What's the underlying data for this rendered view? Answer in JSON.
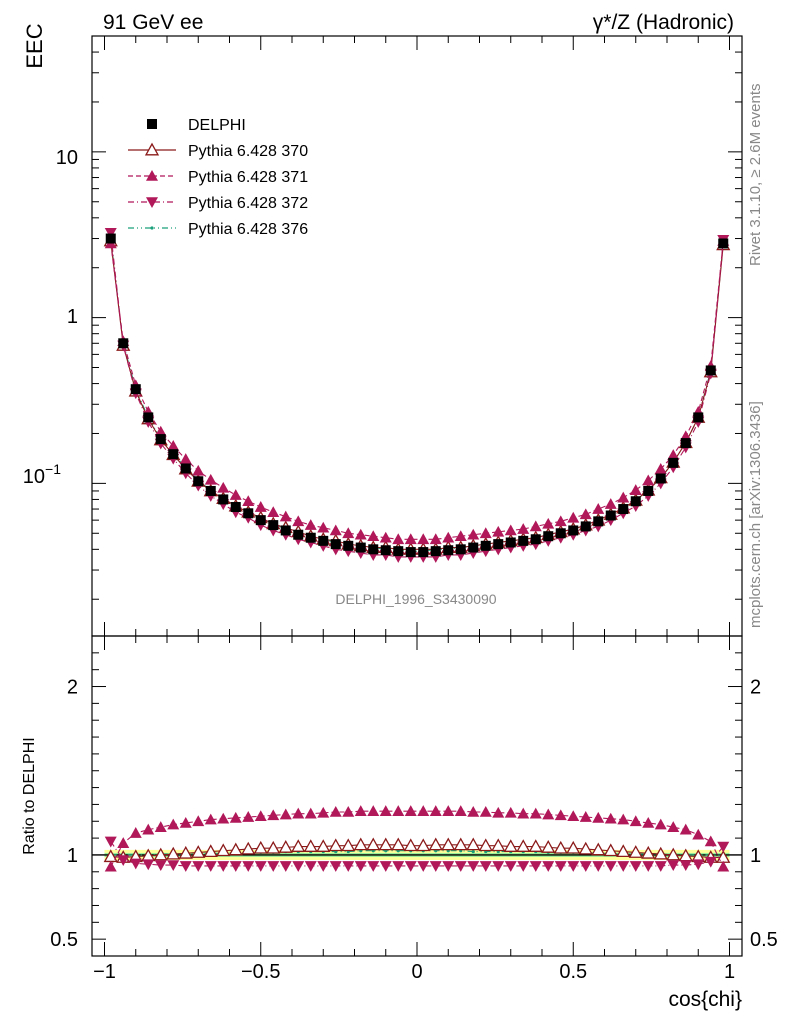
{
  "header": {
    "left_title": "91 GeV ee",
    "right_title": "γ*/Z (Hadronic)"
  },
  "side_text": {
    "rivet": "Rivet 3.1.10, ≥ 2.6M events",
    "mcplots": "mcplots.cern.ch [arXiv:1306.3436]"
  },
  "analysis_label": "DELPHI_1996_S3430090",
  "colors": {
    "data": "#000000",
    "p370": "#8b1a1a",
    "p371": "#b0185a",
    "p372": "#b0185a",
    "p376": "#1aa07a",
    "band_outer": "#ffff99",
    "band_inner": "#99ee99"
  },
  "chart_data": [
    {
      "type": "scatter",
      "ylabel": "EEC",
      "yscale": "log",
      "ylim": [
        0.012,
        50
      ],
      "xlim": [
        -1.04,
        1.04
      ],
      "ytick_labels": {
        "t10": "10",
        "t1": "1",
        "t01_base": "10",
        "t01_exp": "−1"
      },
      "legend": {
        "placement": "top-left",
        "entries": [
          "DELPHI",
          "Pythia 6.428 370",
          "Pythia 6.428 371",
          "Pythia 6.428 372",
          "Pythia 6.428 376"
        ]
      },
      "x": [
        -0.98,
        -0.94,
        -0.9,
        -0.86,
        -0.82,
        -0.78,
        -0.74,
        -0.7,
        -0.66,
        -0.62,
        -0.58,
        -0.54,
        -0.5,
        -0.46,
        -0.42,
        -0.38,
        -0.34,
        -0.3,
        -0.26,
        -0.22,
        -0.18,
        -0.14,
        -0.1,
        -0.06,
        -0.02,
        0.02,
        0.06,
        0.1,
        0.14,
        0.18,
        0.22,
        0.26,
        0.3,
        0.34,
        0.38,
        0.42,
        0.46,
        0.5,
        0.54,
        0.58,
        0.62,
        0.66,
        0.7,
        0.74,
        0.78,
        0.82,
        0.86,
        0.9,
        0.94,
        0.98
      ],
      "series": [
        {
          "name": "DELPHI",
          "values": [
            3.0,
            0.7,
            0.37,
            0.25,
            0.185,
            0.15,
            0.123,
            0.103,
            0.09,
            0.08,
            0.072,
            0.066,
            0.06,
            0.056,
            0.052,
            0.049,
            0.047,
            0.045,
            0.043,
            0.042,
            0.041,
            0.04,
            0.0395,
            0.039,
            0.0385,
            0.0385,
            0.039,
            0.0395,
            0.04,
            0.041,
            0.042,
            0.043,
            0.044,
            0.045,
            0.046,
            0.048,
            0.05,
            0.052,
            0.055,
            0.059,
            0.064,
            0.07,
            0.078,
            0.09,
            0.107,
            0.133,
            0.175,
            0.25,
            0.48,
            2.8
          ]
        },
        {
          "name": "Pythia 6.428 370",
          "values": [
            2.9,
            0.68,
            0.36,
            0.245,
            0.183,
            0.149,
            0.122,
            0.103,
            0.09,
            0.081,
            0.073,
            0.067,
            0.062,
            0.057,
            0.054,
            0.051,
            0.048,
            0.046,
            0.045,
            0.043,
            0.042,
            0.041,
            0.041,
            0.04,
            0.04,
            0.04,
            0.04,
            0.041,
            0.041,
            0.042,
            0.043,
            0.044,
            0.045,
            0.046,
            0.047,
            0.049,
            0.051,
            0.053,
            0.056,
            0.06,
            0.065,
            0.071,
            0.079,
            0.091,
            0.108,
            0.134,
            0.176,
            0.25,
            0.47,
            2.75
          ]
        },
        {
          "name": "Pythia 6.428 371",
          "values": [
            2.8,
            0.72,
            0.39,
            0.27,
            0.205,
            0.168,
            0.14,
            0.119,
            0.105,
            0.094,
            0.085,
            0.078,
            0.072,
            0.067,
            0.063,
            0.059,
            0.056,
            0.054,
            0.052,
            0.05,
            0.049,
            0.048,
            0.047,
            0.046,
            0.046,
            0.046,
            0.046,
            0.047,
            0.048,
            0.049,
            0.05,
            0.051,
            0.052,
            0.053,
            0.055,
            0.057,
            0.059,
            0.062,
            0.065,
            0.07,
            0.075,
            0.082,
            0.091,
            0.104,
            0.122,
            0.148,
            0.192,
            0.27,
            0.51,
            2.9
          ]
        },
        {
          "name": "Pythia 6.428 372",
          "values": [
            3.25,
            0.68,
            0.35,
            0.235,
            0.174,
            0.141,
            0.115,
            0.097,
            0.084,
            0.075,
            0.067,
            0.062,
            0.056,
            0.052,
            0.049,
            0.046,
            0.044,
            0.042,
            0.04,
            0.039,
            0.038,
            0.037,
            0.037,
            0.036,
            0.036,
            0.036,
            0.036,
            0.037,
            0.037,
            0.038,
            0.039,
            0.04,
            0.041,
            0.042,
            0.043,
            0.045,
            0.047,
            0.049,
            0.052,
            0.055,
            0.06,
            0.066,
            0.073,
            0.084,
            0.1,
            0.125,
            0.165,
            0.235,
            0.46,
            2.95
          ]
        },
        {
          "name": "Pythia 6.428 376",
          "values": [
            3.0,
            0.7,
            0.37,
            0.25,
            0.186,
            0.151,
            0.124,
            0.104,
            0.091,
            0.081,
            0.073,
            0.067,
            0.061,
            0.057,
            0.053,
            0.05,
            0.048,
            0.046,
            0.044,
            0.043,
            0.042,
            0.041,
            0.04,
            0.04,
            0.039,
            0.039,
            0.04,
            0.04,
            0.041,
            0.042,
            0.043,
            0.044,
            0.045,
            0.046,
            0.047,
            0.049,
            0.051,
            0.053,
            0.056,
            0.06,
            0.065,
            0.071,
            0.079,
            0.091,
            0.108,
            0.134,
            0.176,
            0.25,
            0.48,
            2.8
          ]
        }
      ]
    },
    {
      "type": "scatter",
      "xlabel": "cos{chi}",
      "ylabel": "Ratio to DELPHI",
      "ylim": [
        0.4,
        2.3
      ],
      "xlim": [
        -1.04,
        1.04
      ],
      "yticks": [
        0.5,
        1,
        2
      ],
      "ytick_labels": [
        "0.5",
        "1",
        "2"
      ],
      "xticks": [
        -1,
        -0.5,
        0,
        0.5,
        1
      ],
      "xtick_labels": [
        "−1",
        "−0.5",
        "0",
        "0.5",
        "1"
      ],
      "band_half_width_outer": 0.03,
      "band_half_width_inner": 0.012,
      "series": [
        {
          "name": "Pythia 6.428 370",
          "values": [
            0.99,
            0.985,
            0.99,
            0.995,
            1.0,
            1.005,
            1.01,
            1.015,
            1.02,
            1.025,
            1.03,
            1.035,
            1.04,
            1.04,
            1.045,
            1.05,
            1.05,
            1.05,
            1.055,
            1.055,
            1.06,
            1.06,
            1.06,
            1.06,
            1.055,
            1.055,
            1.06,
            1.06,
            1.06,
            1.06,
            1.055,
            1.055,
            1.05,
            1.05,
            1.05,
            1.045,
            1.04,
            1.04,
            1.035,
            1.03,
            1.025,
            1.02,
            1.015,
            1.01,
            1.005,
            1.0,
            0.995,
            0.99,
            0.985,
            0.985
          ]
        },
        {
          "name": "Pythia 6.428 371",
          "values": [
            0.93,
            1.07,
            1.13,
            1.15,
            1.165,
            1.18,
            1.19,
            1.2,
            1.21,
            1.215,
            1.22,
            1.225,
            1.23,
            1.235,
            1.24,
            1.245,
            1.245,
            1.25,
            1.255,
            1.255,
            1.26,
            1.26,
            1.26,
            1.26,
            1.26,
            1.26,
            1.26,
            1.26,
            1.26,
            1.255,
            1.255,
            1.25,
            1.25,
            1.245,
            1.245,
            1.24,
            1.235,
            1.23,
            1.225,
            1.22,
            1.215,
            1.21,
            1.2,
            1.19,
            1.18,
            1.165,
            1.15,
            1.12,
            1.08,
            0.93
          ]
        },
        {
          "name": "Pythia 6.428 372",
          "values": [
            1.08,
            0.97,
            0.95,
            0.945,
            0.94,
            0.94,
            0.935,
            0.935,
            0.935,
            0.935,
            0.935,
            0.935,
            0.935,
            0.935,
            0.935,
            0.935,
            0.935,
            0.935,
            0.935,
            0.935,
            0.935,
            0.935,
            0.935,
            0.935,
            0.935,
            0.935,
            0.935,
            0.935,
            0.935,
            0.935,
            0.935,
            0.935,
            0.935,
            0.935,
            0.935,
            0.935,
            0.935,
            0.935,
            0.935,
            0.935,
            0.935,
            0.935,
            0.935,
            0.935,
            0.935,
            0.94,
            0.94,
            0.945,
            0.96,
            1.05
          ]
        },
        {
          "name": "Pythia 6.428 376",
          "values": [
            1.0,
            1.0,
            1.0,
            1.0,
            1.005,
            1.005,
            1.005,
            1.01,
            1.01,
            1.01,
            1.015,
            1.015,
            1.015,
            1.015,
            1.02,
            1.02,
            1.02,
            1.02,
            1.02,
            1.02,
            1.025,
            1.025,
            1.025,
            1.025,
            1.025,
            1.025,
            1.025,
            1.025,
            1.025,
            1.02,
            1.02,
            1.02,
            1.02,
            1.02,
            1.02,
            1.015,
            1.015,
            1.015,
            1.015,
            1.01,
            1.01,
            1.01,
            1.005,
            1.005,
            1.005,
            1.0,
            1.0,
            1.0,
            1.0,
            1.0
          ]
        }
      ]
    }
  ]
}
